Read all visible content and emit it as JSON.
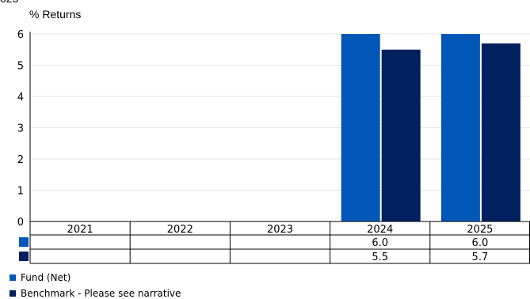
{
  "title_fragment": "025",
  "chart_data": {
    "type": "bar",
    "ylabel": "% Returns",
    "categories": [
      "2021",
      "2022",
      "2023",
      "2024",
      "2025"
    ],
    "ylim": [
      0,
      6
    ],
    "yticks": [
      "0",
      "1",
      "2",
      "3",
      "4",
      "5",
      "6"
    ],
    "grid": true,
    "legend_position": "bottom-left",
    "series": [
      {
        "name": "Fund (Net)",
        "color": "#0057b8",
        "values": [
          null,
          null,
          null,
          6.0,
          6.0
        ],
        "labels": [
          "",
          "",
          "",
          "6.0",
          "6.0"
        ]
      },
      {
        "name": "Benchmark - Please see narrative",
        "color": "#002060",
        "values": [
          null,
          null,
          null,
          5.5,
          5.7
        ],
        "labels": [
          "",
          "",
          "",
          "5.5",
          "5.7"
        ]
      }
    ]
  }
}
